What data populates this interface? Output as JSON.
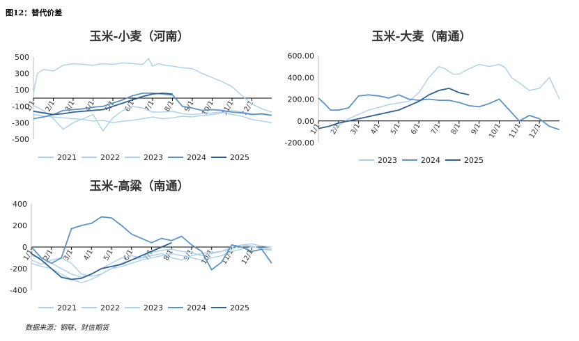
{
  "figure": {
    "header": "图12：替代价差",
    "source": "数据来源：钢联、财信期货"
  },
  "colors": {
    "2021": "#a9d0ec",
    "2022": "#a9d0ec",
    "2023": "#a9d0ec",
    "2024": "#5b93c8",
    "2025": "#2e5f94",
    "axis": "#000000",
    "grid": "#d0d0d0"
  },
  "chart_data": [
    {
      "type": "line",
      "title": "玉米-小麦（河南）",
      "ylim": [
        -500,
        500
      ],
      "yticks": [
        500,
        300,
        100,
        -100,
        -300,
        -500
      ],
      "xticklabels": [
        "1/1",
        "2/1",
        "3/1",
        "4/1",
        "5/1",
        "6/1",
        "7/1",
        "8/1",
        "9/1",
        "10/1",
        "11/1",
        "12/1"
      ],
      "xlim": [
        0,
        12
      ],
      "grid": false,
      "legend": "bottom",
      "series": [
        {
          "name": "2021",
          "x": [
            0,
            0.2,
            0.5,
            1,
            1.5,
            2,
            2.5,
            3,
            3.5,
            4,
            4.5,
            5,
            5.5,
            5.8,
            6,
            6.3,
            6.6,
            7,
            7.5,
            8,
            8.5,
            9,
            9.5,
            10,
            10.5,
            11,
            11.5,
            12
          ],
          "values": [
            60,
            300,
            350,
            330,
            400,
            420,
            410,
            400,
            420,
            410,
            430,
            420,
            410,
            480,
            390,
            420,
            400,
            390,
            370,
            360,
            300,
            250,
            200,
            140,
            30,
            -70,
            -130,
            -170
          ]
        },
        {
          "name": "2022",
          "x": [
            0,
            0.5,
            1,
            1.5,
            2,
            2.5,
            3,
            3.5,
            4,
            4.5,
            5,
            5.5,
            6,
            6.5,
            7,
            7.5,
            8,
            8.5,
            9,
            9.5,
            10,
            10.5,
            11,
            11.5,
            12
          ],
          "values": [
            -200,
            -220,
            -230,
            -240,
            -250,
            -260,
            -280,
            -270,
            -300,
            -280,
            -270,
            -250,
            -230,
            -250,
            -240,
            -220,
            -230,
            -210,
            -200,
            -180,
            -150,
            -170,
            -190,
            -200,
            -210
          ]
        },
        {
          "name": "2023",
          "x": [
            0,
            0.5,
            1,
            1.5,
            2,
            2.5,
            3,
            3.5,
            4,
            4.5,
            5,
            5.5,
            6,
            6.5,
            7,
            7.5,
            8,
            8.5,
            9,
            9.5,
            10,
            10.5,
            11,
            11.5,
            12
          ],
          "values": [
            -90,
            -150,
            -250,
            -380,
            -300,
            -250,
            -200,
            -400,
            -240,
            -150,
            -100,
            -120,
            -170,
            -170,
            -160,
            -190,
            -200,
            -190,
            -180,
            -170,
            -200,
            -220,
            -260,
            -280,
            -300
          ]
        },
        {
          "name": "2024",
          "x": [
            0,
            0.5,
            1,
            1.5,
            2,
            2.5,
            3,
            3.5,
            4,
            4.5,
            5,
            5.5,
            6,
            6.5,
            7,
            7.5,
            8,
            8.5,
            9,
            9.5,
            10,
            10.5,
            11,
            11.5,
            12
          ],
          "values": [
            -250,
            -230,
            -200,
            -150,
            -140,
            -130,
            -110,
            -100,
            -60,
            -20,
            30,
            60,
            60,
            50,
            40,
            -100,
            -120,
            -150,
            -140,
            -150,
            -170,
            -180,
            -200,
            -190,
            -210
          ]
        },
        {
          "name": "2025",
          "x": [
            0,
            0.5,
            1,
            1.5,
            2,
            2.5,
            3,
            3.5,
            4,
            4.5,
            5,
            5.5,
            6,
            6.5,
            7
          ],
          "values": [
            -160,
            -180,
            -200,
            -190,
            -170,
            -160,
            -150,
            -140,
            -100,
            -60,
            -20,
            20,
            50,
            60,
            50
          ]
        }
      ]
    },
    {
      "type": "line",
      "title": "玉米-大麦（南通）",
      "ylim": [
        -200,
        600
      ],
      "yticks": [
        600.0,
        400.0,
        200.0,
        0.0,
        -200.0
      ],
      "yticklabels": [
        "600.00",
        "400.00",
        "200.00",
        "0.00",
        "-200.00"
      ],
      "xticklabels": [
        "1/1",
        "2/1",
        "3/1",
        "4/1",
        "5/1",
        "6/1",
        "7/1",
        "8/1",
        "9/1",
        "10/1",
        "11/1",
        "12/1"
      ],
      "xlim": [
        0,
        12
      ],
      "grid": false,
      "legend": "bottom",
      "series": [
        {
          "name": "2023",
          "x": [
            0.6,
            1.5,
            2.5,
            3.5,
            4.5,
            5,
            5.5,
            6,
            6.3,
            6.7,
            7,
            7.5,
            8,
            8.5,
            9,
            9.3,
            9.6,
            10,
            10.5,
            11,
            11.5,
            12
          ],
          "values": [
            -100,
            20,
            100,
            150,
            180,
            260,
            400,
            500,
            480,
            430,
            430,
            480,
            520,
            500,
            520,
            490,
            400,
            350,
            280,
            300,
            400,
            200
          ]
        },
        {
          "name": "2024",
          "x": [
            0,
            0.3,
            0.6,
            1,
            1.5,
            2,
            2.5,
            3,
            3.5,
            4,
            4.5,
            5,
            5.5,
            6,
            6.5,
            7,
            7.5,
            8,
            8.5,
            9,
            9.5,
            10,
            10.5,
            11,
            11.5,
            12
          ],
          "values": [
            210,
            160,
            100,
            100,
            120,
            230,
            240,
            230,
            210,
            240,
            200,
            190,
            200,
            190,
            190,
            170,
            140,
            130,
            160,
            200,
            100,
            0,
            50,
            20,
            -50,
            -80
          ]
        },
        {
          "name": "2025",
          "x": [
            0,
            0.5,
            1,
            1.5,
            2,
            2.5,
            3,
            3.5,
            4,
            4.5,
            5,
            5.5,
            6,
            6.5,
            7,
            7.5
          ],
          "values": [
            -70,
            -50,
            -20,
            0,
            20,
            40,
            60,
            80,
            100,
            140,
            180,
            240,
            280,
            300,
            260,
            240
          ]
        }
      ]
    },
    {
      "type": "line",
      "title": "玉米-高粱（南通）",
      "ylim": [
        -400,
        400
      ],
      "yticks": [
        400,
        200,
        0,
        -200,
        -400
      ],
      "xticklabels": [
        "1/1",
        "2/1",
        "3/1",
        "4/1",
        "5/1",
        "6/1",
        "7/1",
        "8/1",
        "9/1",
        "10/1",
        "11/1",
        "12/1"
      ],
      "xlim": [
        0,
        12
      ],
      "grid": false,
      "legend": "bottom",
      "series": [
        {
          "name": "2021",
          "x": [
            0,
            0.5,
            1,
            1.5,
            2,
            2.5,
            3,
            3.5,
            4,
            4.5,
            5,
            5.5,
            6,
            6.5,
            7,
            7.5,
            8,
            8.5,
            9,
            9.5,
            10,
            10.5,
            11,
            11.5,
            12
          ],
          "values": [
            -80,
            -100,
            -150,
            -200,
            -250,
            -280,
            -250,
            -200,
            -150,
            -100,
            -80,
            -100,
            -50,
            -30,
            -20,
            -40,
            -50,
            -80,
            -60,
            -40,
            0,
            20,
            10,
            -20,
            -30
          ]
        },
        {
          "name": "2022",
          "x": [
            0,
            0.5,
            1,
            1.5,
            2,
            2.5,
            3,
            3.5,
            4,
            4.5,
            5,
            5.5,
            6,
            6.5,
            7,
            7.5,
            8,
            8.5,
            9,
            9.5,
            10,
            10.5,
            11,
            11.5,
            12
          ],
          "values": [
            -150,
            -180,
            -200,
            -250,
            -300,
            -330,
            -300,
            -250,
            -200,
            -180,
            -150,
            -120,
            -100,
            -80,
            -60,
            -80,
            -100,
            -120,
            -100,
            -80,
            -40,
            -20,
            0,
            -10,
            -20
          ]
        },
        {
          "name": "2023",
          "x": [
            0,
            0.5,
            1,
            1.5,
            2,
            2.5,
            3,
            3.5,
            4,
            4.5,
            5,
            5.5,
            6,
            6.5,
            7,
            7.5,
            8,
            8.5,
            9,
            9.5,
            10,
            10.5,
            11,
            11.5,
            12
          ],
          "values": [
            -120,
            -160,
            -120,
            -100,
            -150,
            -250,
            -270,
            -250,
            -200,
            -150,
            -120,
            -100,
            -80,
            -60,
            -100,
            -120,
            -80,
            -60,
            -50,
            -40,
            -20,
            20,
            30,
            10,
            0
          ]
        },
        {
          "name": "2024",
          "x": [
            0,
            0.5,
            1,
            1.5,
            2,
            2.5,
            3,
            3.5,
            4,
            4.5,
            5,
            5.5,
            6,
            6.5,
            7,
            7.5,
            8,
            8.5,
            9,
            9.5,
            10,
            10.5,
            11,
            11.5,
            12
          ],
          "values": [
            0,
            -100,
            -150,
            -100,
            170,
            200,
            220,
            280,
            270,
            200,
            120,
            80,
            40,
            80,
            60,
            100,
            20,
            -40,
            -210,
            -140,
            20,
            0,
            -40,
            -20,
            -150
          ]
        },
        {
          "name": "2025",
          "x": [
            0,
            0.5,
            1,
            1.5,
            2,
            2.5,
            3,
            3.5,
            4,
            4.5,
            5,
            5.5,
            6,
            6.5,
            7
          ],
          "values": [
            -60,
            -120,
            -200,
            -280,
            -300,
            -290,
            -250,
            -200,
            -180,
            -160,
            -120,
            -80,
            -40,
            0,
            40
          ]
        }
      ]
    }
  ]
}
